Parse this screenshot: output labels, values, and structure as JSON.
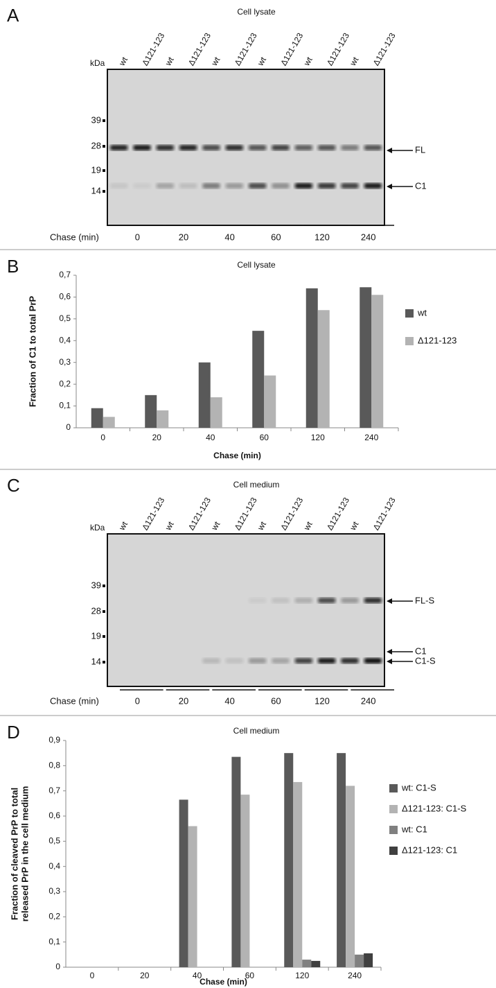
{
  "panel_labels": [
    "A",
    "B",
    "C",
    "D"
  ],
  "gels": [
    {
      "title": "Cell lysate",
      "unit": "kDa",
      "lanes": [
        "wt",
        "Δ121-123",
        "wt",
        "Δ121-123",
        "wt",
        "Δ121-123",
        "wt",
        "Δ121-123",
        "wt",
        "Δ121-123",
        "wt",
        "Δ121-123"
      ],
      "markers": [
        39,
        28,
        19,
        14
      ],
      "bands": [
        "FL",
        "C1"
      ],
      "chase_label": "Chase (min)",
      "timepoints": [
        "0",
        "20",
        "40",
        "60",
        "120",
        "240"
      ]
    },
    {
      "title": "Cell medium",
      "unit": "kDa",
      "lanes": [
        "wt",
        "Δ121-123",
        "wt",
        "Δ121-123",
        "wt",
        "Δ121-123",
        "wt",
        "Δ121-123",
        "wt",
        "Δ121-123",
        "wt",
        "Δ121-123"
      ],
      "markers": [
        39,
        28,
        19,
        14
      ],
      "bands": [
        "FL-S",
        "C1",
        "C1-S"
      ],
      "chase_label": "Chase (min)",
      "timepoints": [
        "0",
        "20",
        "40",
        "60",
        "120",
        "240"
      ]
    }
  ],
  "chart_data": [
    {
      "type": "bar",
      "title": "Cell lysate",
      "xlabel": "Chase (min)",
      "ylabel": "Fraction of C1 to total PrP",
      "categories": [
        "0",
        "20",
        "40",
        "60",
        "120",
        "240"
      ],
      "series": [
        {
          "name": "wt",
          "color": "#595959",
          "values": [
            0.09,
            0.15,
            0.3,
            0.445,
            0.64,
            0.645
          ]
        },
        {
          "name": "Δ121-123",
          "color": "#b3b3b3",
          "values": [
            0.05,
            0.08,
            0.14,
            0.24,
            0.54,
            0.61
          ]
        }
      ],
      "ylim": [
        0,
        0.7
      ],
      "yticks": [
        0,
        {
          "value": 0.1,
          "label": "0,1"
        },
        {
          "value": 0.2,
          "label": "0,2"
        },
        {
          "value": 0.3,
          "label": "0,3"
        },
        {
          "value": 0.4,
          "label": "0,4"
        },
        {
          "value": 0.5,
          "label": "0,5"
        },
        {
          "value": 0.6,
          "label": "0,6"
        },
        {
          "value": 0.7,
          "label": "0,7"
        }
      ],
      "legend": "right",
      "grid": false
    },
    {
      "type": "bar",
      "title": "Cell medium",
      "xlabel": "Chase (min)",
      "ylabel": [
        "Fraction of cleaved PrP to total",
        "released PrP in the cell medium"
      ],
      "categories": [
        "0",
        "20",
        "40",
        "60",
        "120",
        "240"
      ],
      "series": [
        {
          "name": "wt: C1-S",
          "color": "#595959",
          "values": [
            0,
            0,
            0.665,
            0.835,
            0.85,
            0.85
          ]
        },
        {
          "name": "Δ121-123: C1-S",
          "color": "#b3b3b3",
          "values": [
            0,
            0,
            0.56,
            0.685,
            0.735,
            0.72
          ]
        },
        {
          "name": "wt: C1",
          "color": "#808080",
          "values": [
            0,
            0,
            0,
            0,
            0.03,
            0.05
          ]
        },
        {
          "name": "Δ121-123: C1",
          "color": "#404040",
          "values": [
            0,
            0,
            0,
            0,
            0.025,
            0.055
          ]
        }
      ],
      "ylim": [
        0,
        0.9
      ],
      "yticks": [
        0,
        {
          "value": 0.1,
          "label": "0,1"
        },
        {
          "value": 0.2,
          "label": "0,2"
        },
        {
          "value": 0.3,
          "label": "0,3"
        },
        {
          "value": 0.4,
          "label": "0,4"
        },
        {
          "value": 0.5,
          "label": "0,5"
        },
        {
          "value": 0.6,
          "label": "0,6"
        },
        {
          "value": 0.7,
          "label": "0,7"
        },
        {
          "value": 0.8,
          "label": "0,8"
        },
        {
          "value": 0.9,
          "label": "0,9"
        }
      ],
      "legend": "right",
      "grid": false
    }
  ]
}
